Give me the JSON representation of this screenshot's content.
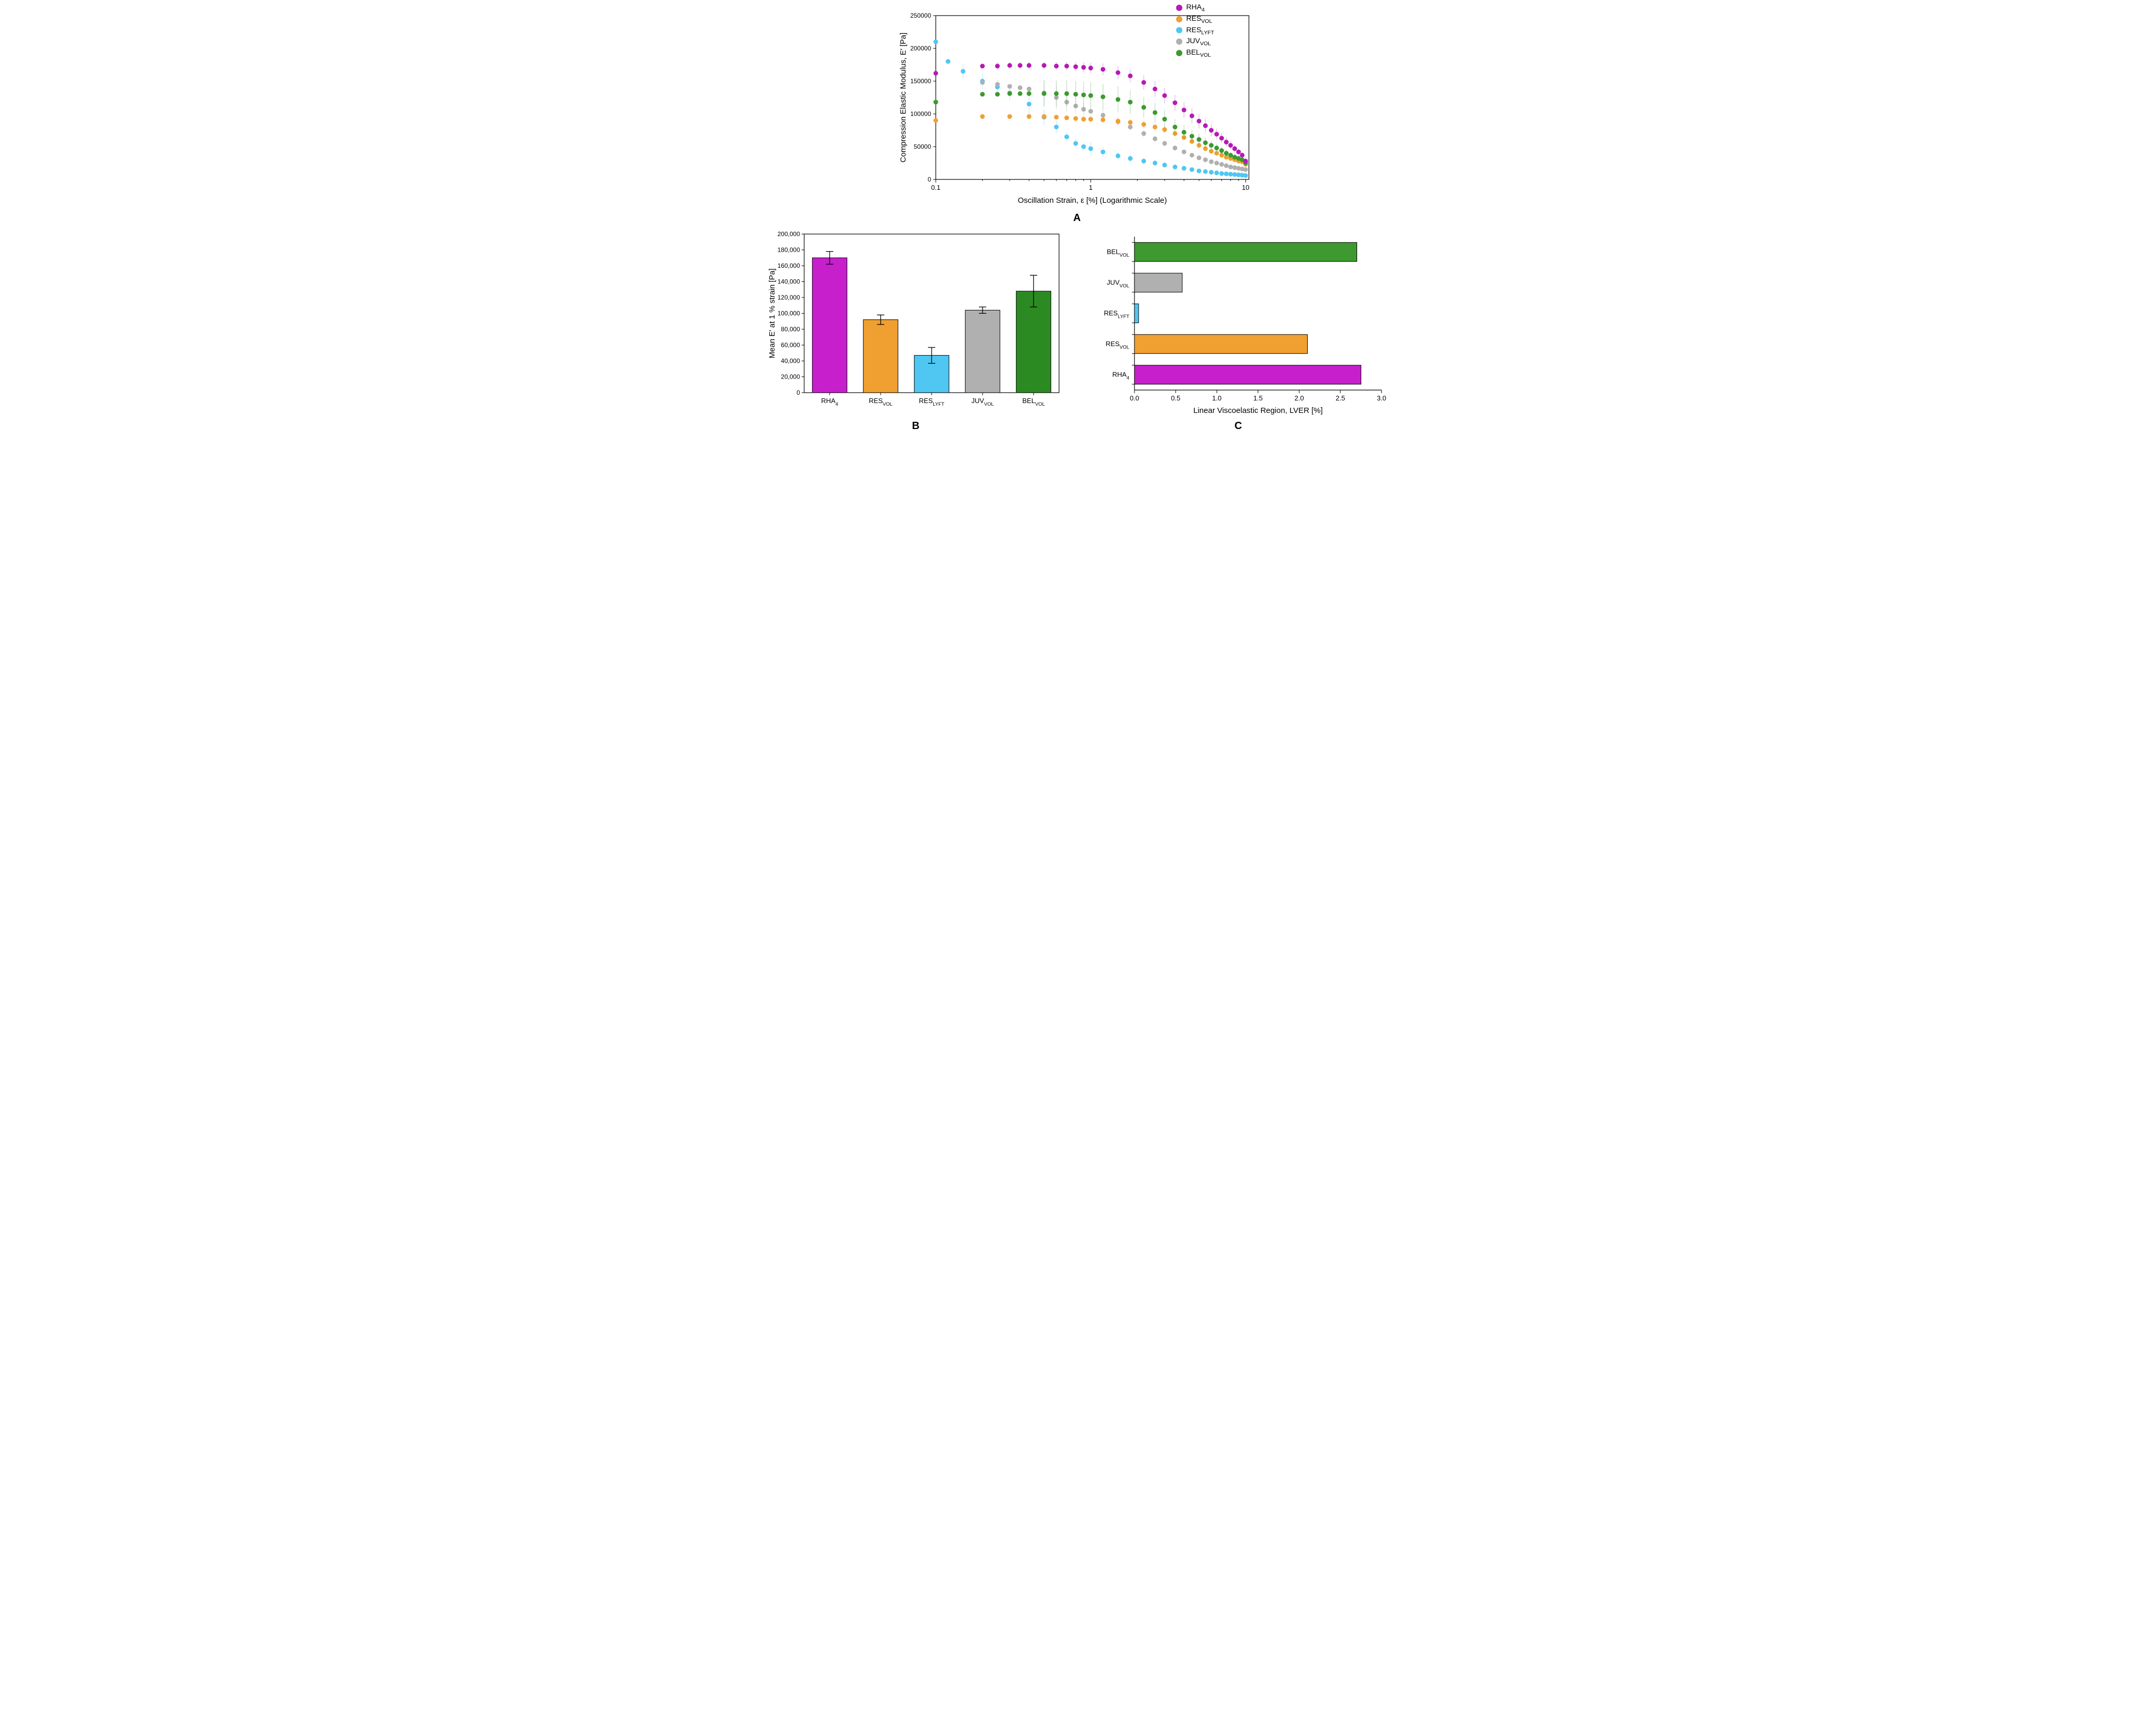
{
  "legend": {
    "items": [
      {
        "label": "RHA",
        "sub": "4",
        "color": "#b51ab5"
      },
      {
        "label": "RES",
        "sub": "VOL",
        "color": "#f0a030"
      },
      {
        "label": "RES",
        "sub": "LYFT",
        "color": "#4fc7f2"
      },
      {
        "label": "JUV",
        "sub": "VOL",
        "color": "#b0b0b0"
      },
      {
        "label": "BEL",
        "sub": "VOL",
        "color": "#3d9930"
      }
    ]
  },
  "panelA": {
    "label": "A",
    "xlabel": "Oscillation Strain, ε [%] (Logarithmic Scale)",
    "ylabel": "Compression Elastic Modulus, E' [Pa]",
    "xscale": "log",
    "xlim": [
      0.1,
      10.5
    ],
    "ylim": [
      0,
      250000
    ],
    "ytick_step": 50000,
    "xticks": [
      0.1,
      1,
      10
    ],
    "xtick_labels": [
      "0.1",
      "1",
      "10"
    ],
    "marker_size": 4.5,
    "error_alpha": 0.4,
    "series": [
      {
        "name": "RES_LYFT",
        "color": "#4fc7f2",
        "x": [
          0.1,
          0.12,
          0.15,
          0.2,
          0.25,
          0.3,
          0.4,
          0.5,
          0.6,
          0.7,
          0.8,
          0.9,
          1.0,
          1.2,
          1.5,
          1.8,
          2.2,
          2.6,
          3.0,
          3.5,
          4.0,
          4.5,
          5.0,
          5.5,
          6.0,
          6.5,
          7.0,
          7.5,
          8.0,
          8.5,
          9.0,
          9.5,
          10.0
        ],
        "y": [
          210000,
          180000,
          165000,
          150000,
          141000,
          132000,
          115000,
          95000,
          80000,
          65000,
          55000,
          50000,
          47000,
          42000,
          36000,
          32000,
          28000,
          25000,
          22000,
          19000,
          17000,
          15000,
          13000,
          12000,
          11000,
          10000,
          9000,
          8500,
          8000,
          7500,
          7000,
          6500,
          6000
        ],
        "err": [
          0,
          0,
          12000,
          12000,
          12000,
          12000,
          15000,
          12000,
          10000,
          8000,
          7000,
          6000,
          10000,
          8000,
          7000,
          6000,
          5000,
          4500,
          4000,
          3500,
          3000,
          2500,
          2200,
          2000,
          1800,
          1600,
          1500,
          1400,
          1300,
          1200,
          1100,
          1000,
          900
        ]
      },
      {
        "name": "JUV_VOL",
        "color": "#b0b0b0",
        "x": [
          0.1,
          0.2,
          0.25,
          0.3,
          0.35,
          0.4,
          0.5,
          0.6,
          0.7,
          0.8,
          0.9,
          1.0,
          1.2,
          1.5,
          1.8,
          2.2,
          2.6,
          3.0,
          3.5,
          4.0,
          4.5,
          5.0,
          5.5,
          6.0,
          6.5,
          7.0,
          7.5,
          8.0,
          8.5,
          9.0,
          9.5,
          10.0
        ],
        "y": [
          118000,
          148000,
          145000,
          142000,
          140000,
          138000,
          132000,
          125000,
          118000,
          112000,
          107000,
          104000,
          98000,
          88000,
          80000,
          70000,
          62000,
          55000,
          48000,
          42000,
          37000,
          33000,
          30000,
          27000,
          25000,
          23000,
          21000,
          19000,
          18000,
          17000,
          16000,
          15000
        ],
        "err": [
          0,
          0,
          0,
          0,
          0,
          0,
          20000,
          18000,
          15000,
          12000,
          10000,
          4000,
          8000,
          7000,
          6000,
          5500,
          5000,
          4500,
          4000,
          3500,
          3000,
          2700,
          2500,
          2200,
          2000,
          1800,
          1700,
          1600,
          1500,
          1400,
          1300,
          1200
        ]
      },
      {
        "name": "RES_VOL",
        "color": "#f0a030",
        "x": [
          0.1,
          0.2,
          0.3,
          0.4,
          0.5,
          0.6,
          0.7,
          0.8,
          0.9,
          1.0,
          1.2,
          1.5,
          1.8,
          2.2,
          2.6,
          3.0,
          3.5,
          4.0,
          4.5,
          5.0,
          5.5,
          6.0,
          6.5,
          7.0,
          7.5,
          8.0,
          8.5,
          9.0,
          9.5,
          10.0
        ],
        "y": [
          90000,
          96000,
          96000,
          96000,
          96000,
          95000,
          94000,
          93000,
          92000,
          92000,
          91000,
          89000,
          87000,
          84000,
          80000,
          76000,
          70000,
          64000,
          58000,
          52000,
          47000,
          43000,
          40000,
          37000,
          34000,
          32000,
          30000,
          28000,
          27000,
          23000
        ],
        "err": [
          0,
          0,
          0,
          0,
          0,
          0,
          0,
          5000,
          5000,
          6000,
          6000,
          6000,
          6000,
          6000,
          6000,
          6000,
          5500,
          5000,
          4500,
          4000,
          3500,
          3200,
          3000,
          2800,
          2600,
          2400,
          2200,
          2000,
          1900,
          1800
        ]
      },
      {
        "name": "BEL_VOL",
        "color": "#3d9930",
        "x": [
          0.1,
          0.2,
          0.25,
          0.3,
          0.35,
          0.4,
          0.5,
          0.6,
          0.7,
          0.8,
          0.9,
          1.0,
          1.2,
          1.5,
          1.8,
          2.2,
          2.6,
          3.0,
          3.5,
          4.0,
          4.5,
          5.0,
          5.5,
          6.0,
          6.5,
          7.0,
          7.5,
          8.0,
          8.5,
          9.0,
          9.5,
          10.0
        ],
        "y": [
          118000,
          130000,
          130000,
          131000,
          131000,
          131000,
          131000,
          131000,
          131000,
          130000,
          129000,
          128000,
          126000,
          122000,
          118000,
          110000,
          102000,
          92000,
          80000,
          72000,
          66000,
          61000,
          56000,
          52000,
          48000,
          44000,
          40000,
          37000,
          34000,
          32000,
          30000,
          25000
        ],
        "err": [
          0,
          0,
          0,
          0,
          0,
          0,
          20000,
          20000,
          20000,
          20000,
          20000,
          20000,
          20000,
          20000,
          18000,
          16000,
          15000,
          14000,
          12000,
          11000,
          10000,
          9000,
          8000,
          7000,
          6500,
          6000,
          5500,
          5000,
          4500,
          4000,
          3500,
          3000
        ]
      },
      {
        "name": "RHA4",
        "color": "#b51ab5",
        "x": [
          0.1,
          0.2,
          0.25,
          0.3,
          0.35,
          0.4,
          0.5,
          0.6,
          0.7,
          0.8,
          0.9,
          1.0,
          1.2,
          1.5,
          1.8,
          2.2,
          2.6,
          3.0,
          3.5,
          4.0,
          4.5,
          5.0,
          5.5,
          6.0,
          6.5,
          7.0,
          7.5,
          8.0,
          8.5,
          9.0,
          9.5,
          10.0
        ],
        "y": [
          162000,
          173000,
          173000,
          174000,
          174000,
          174000,
          174000,
          173000,
          173000,
          172000,
          171000,
          170000,
          168000,
          163000,
          158000,
          148000,
          138000,
          128000,
          117000,
          106000,
          97000,
          89000,
          82000,
          75000,
          69000,
          63000,
          57000,
          52000,
          47000,
          42000,
          37000,
          28000
        ],
        "err": [
          0,
          0,
          5000,
          5000,
          5000,
          5000,
          5000,
          6000,
          6000,
          7000,
          8000,
          8000,
          9000,
          10000,
          10000,
          11000,
          12000,
          12000,
          12000,
          12000,
          12000,
          11000,
          10000,
          9500,
          8500,
          7500,
          7000,
          6500,
          6000,
          5500,
          5000,
          4000
        ]
      }
    ]
  },
  "panelB": {
    "label": "B",
    "type": "bar",
    "xlabel": "",
    "ylabel": "Mean E' at 1 % strain [Pa]",
    "ylim": [
      0,
      200000
    ],
    "ytick_step": 20000,
    "ytick_labels": [
      "0",
      "20,000",
      "40,000",
      "60,000",
      "80,000",
      "100,000",
      "120,000",
      "140,000",
      "160,000",
      "180,000",
      "200,000"
    ],
    "categories": [
      {
        "label": "RHA",
        "sub": "4"
      },
      {
        "label": "RES",
        "sub": "VOL"
      },
      {
        "label": "RES",
        "sub": "LYFT"
      },
      {
        "label": "JUV",
        "sub": "VOL"
      },
      {
        "label": "BEL",
        "sub": "VOL"
      }
    ],
    "values": [
      170000,
      92000,
      47000,
      104000,
      128000
    ],
    "errors": [
      8000,
      6000,
      10000,
      4000,
      20000
    ],
    "colors": [
      "#c61fcb",
      "#f0a030",
      "#4fc7f2",
      "#b0b0b0",
      "#2c8a22"
    ],
    "bar_width": 0.68,
    "border_color": "#000000"
  },
  "panelC": {
    "label": "C",
    "type": "hbar",
    "xlabel": "Linear Viscoelastic Region, LVER [%]",
    "xlim": [
      0.0,
      3.0
    ],
    "xtick_step": 0.5,
    "xtick_labels": [
      "0.0",
      "0.5",
      "1.0",
      "1.5",
      "2.0",
      "2.5",
      "3.0"
    ],
    "categories": [
      {
        "label": "BEL",
        "sub": "VOL"
      },
      {
        "label": "JUV",
        "sub": "VOL"
      },
      {
        "label": "RES",
        "sub": "LYFT"
      },
      {
        "label": "RES",
        "sub": "VOL"
      },
      {
        "label": "RHA",
        "sub": "4"
      }
    ],
    "values": [
      2.7,
      0.58,
      0.05,
      2.1,
      2.75
    ],
    "colors": [
      "#3d9930",
      "#b0b0b0",
      "#4fc7f2",
      "#f0a030",
      "#c61fcb"
    ],
    "bar_height": 0.62,
    "border_color": "#000000"
  }
}
